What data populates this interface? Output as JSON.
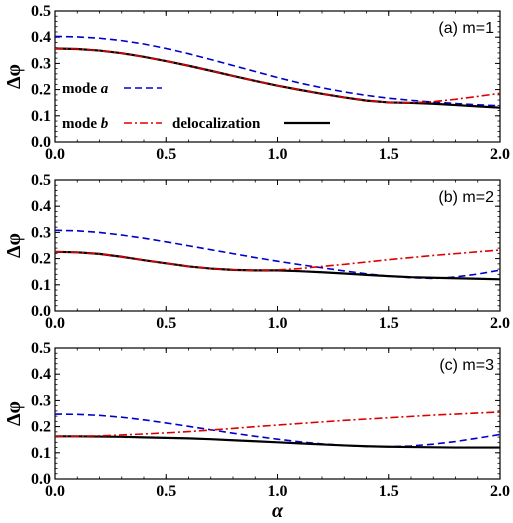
{
  "chart_data": [
    {
      "type": "line",
      "panel_label": "(a) m=1",
      "xlabel": "",
      "ylabel": "Δφ",
      "xlim": [
        0.0,
        2.0
      ],
      "ylim": [
        0.0,
        0.5
      ],
      "xticks": [
        "0.0",
        "0.5",
        "1.0",
        "1.5",
        "2.0"
      ],
      "yticks": [
        "0.0",
        "0.1",
        "0.2",
        "0.3",
        "0.4",
        "0.5"
      ],
      "legend": [
        {
          "prefix": "mode ",
          "name": "a",
          "series": 0
        },
        {
          "prefix": "mode ",
          "name": "b",
          "series": 1
        },
        {
          "prefix": "",
          "name": "delocalization",
          "series": 2
        }
      ],
      "series": [
        {
          "name": "mode a",
          "color": "#0000cc",
          "style": "dashed",
          "x": [
            0.0,
            0.1,
            0.2,
            0.3,
            0.4,
            0.5,
            0.6,
            0.7,
            0.8,
            0.9,
            1.0,
            1.1,
            1.2,
            1.3,
            1.4,
            1.5,
            1.6,
            1.7,
            1.8,
            1.9,
            2.0
          ],
          "y": [
            0.403,
            0.401,
            0.396,
            0.387,
            0.374,
            0.357,
            0.337,
            0.315,
            0.292,
            0.269,
            0.246,
            0.225,
            0.207,
            0.191,
            0.178,
            0.167,
            0.159,
            0.152,
            0.147,
            0.142,
            0.138
          ]
        },
        {
          "name": "mode b",
          "color": "#dd0000",
          "style": "dashdot",
          "x": [
            0.0,
            0.1,
            0.2,
            0.3,
            0.4,
            0.5,
            0.6,
            0.7,
            0.8,
            0.9,
            1.0,
            1.1,
            1.2,
            1.3,
            1.4,
            1.5,
            1.6,
            1.7,
            1.8,
            1.9,
            2.0
          ],
          "y": [
            0.357,
            0.355,
            0.349,
            0.339,
            0.325,
            0.309,
            0.291,
            0.272,
            0.252,
            0.233,
            0.215,
            0.199,
            0.184,
            0.17,
            0.158,
            0.151,
            0.15,
            0.154,
            0.163,
            0.174,
            0.186
          ]
        },
        {
          "name": "delocalization",
          "color": "#000000",
          "style": "solid",
          "x": [
            0.0,
            0.1,
            0.2,
            0.3,
            0.4,
            0.5,
            0.6,
            0.7,
            0.8,
            0.9,
            1.0,
            1.1,
            1.2,
            1.3,
            1.4,
            1.5,
            1.6,
            1.7,
            1.8,
            1.9,
            2.0
          ],
          "y": [
            0.357,
            0.355,
            0.349,
            0.339,
            0.325,
            0.309,
            0.291,
            0.272,
            0.252,
            0.233,
            0.215,
            0.199,
            0.184,
            0.17,
            0.158,
            0.151,
            0.149,
            0.146,
            0.141,
            0.136,
            0.131
          ]
        }
      ]
    },
    {
      "type": "line",
      "panel_label": "(b) m=2",
      "xlabel": "",
      "ylabel": "Δφ",
      "xlim": [
        0.0,
        2.0
      ],
      "ylim": [
        0.0,
        0.5
      ],
      "xticks": [
        "0.0",
        "0.5",
        "1.0",
        "1.5",
        "2.0"
      ],
      "yticks": [
        "0.0",
        "0.1",
        "0.2",
        "0.3",
        "0.4",
        "0.5"
      ],
      "series": [
        {
          "name": "mode a",
          "color": "#0000cc",
          "style": "dashed",
          "x": [
            0.0,
            0.1,
            0.2,
            0.3,
            0.4,
            0.5,
            0.6,
            0.7,
            0.8,
            0.9,
            1.0,
            1.1,
            1.2,
            1.3,
            1.4,
            1.5,
            1.6,
            1.7,
            1.8,
            1.9,
            2.0
          ],
          "y": [
            0.308,
            0.306,
            0.3,
            0.29,
            0.278,
            0.264,
            0.249,
            0.234,
            0.219,
            0.204,
            0.19,
            0.177,
            0.165,
            0.153,
            0.142,
            0.133,
            0.127,
            0.124,
            0.13,
            0.141,
            0.156
          ]
        },
        {
          "name": "mode b",
          "color": "#dd0000",
          "style": "dashdot",
          "x": [
            0.0,
            0.1,
            0.2,
            0.3,
            0.4,
            0.5,
            0.6,
            0.7,
            0.8,
            0.9,
            1.0,
            1.1,
            1.2,
            1.3,
            1.4,
            1.5,
            1.6,
            1.7,
            1.8,
            1.9,
            2.0
          ],
          "y": [
            0.226,
            0.224,
            0.218,
            0.207,
            0.194,
            0.182,
            0.17,
            0.162,
            0.157,
            0.155,
            0.157,
            0.162,
            0.17,
            0.178,
            0.187,
            0.196,
            0.204,
            0.212,
            0.219,
            0.226,
            0.233
          ]
        },
        {
          "name": "delocalization",
          "color": "#000000",
          "style": "solid",
          "x": [
            0.0,
            0.1,
            0.2,
            0.3,
            0.4,
            0.5,
            0.6,
            0.7,
            0.8,
            0.9,
            1.0,
            1.1,
            1.2,
            1.3,
            1.4,
            1.5,
            1.6,
            1.7,
            1.8,
            1.9,
            2.0
          ],
          "y": [
            0.226,
            0.224,
            0.218,
            0.207,
            0.194,
            0.182,
            0.17,
            0.162,
            0.157,
            0.155,
            0.155,
            0.152,
            0.148,
            0.143,
            0.138,
            0.133,
            0.129,
            0.127,
            0.125,
            0.123,
            0.121
          ]
        }
      ]
    },
    {
      "type": "line",
      "panel_label": "(c) m=3",
      "xlabel": "α",
      "ylabel": "Δφ",
      "xlim": [
        0.0,
        2.0
      ],
      "ylim": [
        0.0,
        0.5
      ],
      "xticks": [
        "0.0",
        "0.5",
        "1.0",
        "1.5",
        "2.0"
      ],
      "yticks": [
        "0.0",
        "0.1",
        "0.2",
        "0.3",
        "0.4",
        "0.5"
      ],
      "series": [
        {
          "name": "mode a",
          "color": "#0000cc",
          "style": "dashed",
          "x": [
            0.0,
            0.1,
            0.2,
            0.3,
            0.4,
            0.5,
            0.6,
            0.7,
            0.8,
            0.9,
            1.0,
            1.1,
            1.2,
            1.3,
            1.4,
            1.5,
            1.6,
            1.7,
            1.8,
            1.9,
            2.0
          ],
          "y": [
            0.248,
            0.247,
            0.243,
            0.236,
            0.226,
            0.214,
            0.201,
            0.188,
            0.175,
            0.163,
            0.152,
            0.142,
            0.134,
            0.128,
            0.124,
            0.123,
            0.126,
            0.133,
            0.143,
            0.156,
            0.17
          ]
        },
        {
          "name": "mode b",
          "color": "#dd0000",
          "style": "dashdot",
          "x": [
            0.0,
            0.1,
            0.2,
            0.3,
            0.4,
            0.5,
            0.6,
            0.7,
            0.8,
            0.9,
            1.0,
            1.1,
            1.2,
            1.3,
            1.4,
            1.5,
            1.6,
            1.7,
            1.8,
            1.9,
            2.0
          ],
          "y": [
            0.163,
            0.163,
            0.165,
            0.168,
            0.172,
            0.176,
            0.181,
            0.187,
            0.193,
            0.2,
            0.206,
            0.212,
            0.218,
            0.224,
            0.229,
            0.234,
            0.239,
            0.244,
            0.248,
            0.252,
            0.256
          ]
        },
        {
          "name": "delocalization",
          "color": "#000000",
          "style": "solid",
          "x": [
            0.0,
            0.1,
            0.2,
            0.3,
            0.4,
            0.5,
            0.6,
            0.7,
            0.8,
            0.9,
            1.0,
            1.1,
            1.2,
            1.3,
            1.4,
            1.5,
            1.6,
            1.7,
            1.8,
            1.9,
            2.0
          ],
          "y": [
            0.163,
            0.163,
            0.162,
            0.161,
            0.159,
            0.157,
            0.155,
            0.152,
            0.148,
            0.144,
            0.14,
            0.136,
            0.132,
            0.128,
            0.125,
            0.123,
            0.122,
            0.121,
            0.12,
            0.12,
            0.12
          ]
        }
      ]
    }
  ]
}
